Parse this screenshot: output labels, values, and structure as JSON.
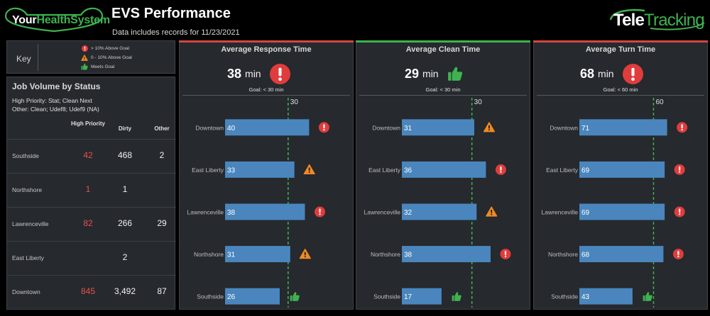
{
  "header": {
    "brand": {
      "part1": "Your",
      "part2": "HealthSystem"
    },
    "title": "EVS Performance",
    "subtitle": "Data includes records for 11/23/2021",
    "vendor": {
      "part1": "Tele",
      "part2": "Tracking"
    }
  },
  "key": {
    "label": "Key",
    "items": [
      {
        "icon": "alert-circle-icon",
        "text": "> 10% Above Goal",
        "color": "#e03c3c"
      },
      {
        "icon": "warning-triangle-icon",
        "text": "0 - 10% Above Goal",
        "color": "#f08a24"
      },
      {
        "icon": "thumbs-up-icon",
        "text": "Meets Goal",
        "color": "#3fb24f"
      }
    ]
  },
  "job_volume": {
    "title": "Job Volume by Status",
    "notes": [
      "High Priority: Stat; Clean Next",
      "Other: Clean; Udef8; Udef9 (NA)"
    ],
    "columns": [
      "High Priority",
      "Dirty",
      "Other"
    ],
    "rows": [
      {
        "location": "Southside",
        "high_priority": "42",
        "dirty": "468",
        "other": "2"
      },
      {
        "location": "Northshore",
        "high_priority": "1",
        "dirty": "1",
        "other": ""
      },
      {
        "location": "Lawrenceville",
        "high_priority": "82",
        "dirty": "266",
        "other": "29"
      },
      {
        "location": "East Liberty",
        "high_priority": "",
        "dirty": "2",
        "other": ""
      },
      {
        "location": "Downtown",
        "high_priority": "845",
        "dirty": "3,492",
        "other": "87"
      }
    ]
  },
  "colors": {
    "bar": "#4a86bd",
    "goal_line": "#3fb24f",
    "alert": "#e03c3c",
    "warning": "#f08a24",
    "good": "#3fb24f",
    "panel_bg": "#26292e"
  },
  "chart_data": [
    {
      "type": "bar",
      "title": "Average Response Time",
      "metric_value": "38",
      "unit": "min",
      "status_icon": "alert-circle-icon",
      "top_color": "#d64541",
      "goal_text": "Goal: < 30 min",
      "goal_value": 30,
      "goal_label": "30",
      "xlim": [
        0,
        50
      ],
      "categories": [
        "Downtown",
        "East Liberty",
        "Lawrenceville",
        "Northshore",
        "Southside"
      ],
      "values": [
        40,
        33,
        38,
        31,
        26
      ],
      "labels": [
        "40",
        "33",
        "38",
        "31",
        "26"
      ],
      "icons": [
        "alert-circle-icon",
        "warning-triangle-icon",
        "alert-circle-icon",
        "warning-triangle-icon",
        "thumbs-up-icon"
      ]
    },
    {
      "type": "bar",
      "title": "Average Clean Time",
      "metric_value": "29",
      "unit": "min",
      "status_icon": "thumbs-up-icon",
      "top_color": "#3fb24f",
      "goal_text": "Goal: < 30 min",
      "goal_value": 30,
      "goal_label": "30",
      "xlim": [
        0,
        45
      ],
      "categories": [
        "Downtown",
        "East Liberty",
        "Lawrenceville",
        "Northshore",
        "Southside"
      ],
      "values": [
        31,
        36,
        32,
        38,
        17
      ],
      "labels": [
        "31",
        "36",
        "32",
        "38",
        "17"
      ],
      "icons": [
        "warning-triangle-icon",
        "alert-circle-icon",
        "warning-triangle-icon",
        "alert-circle-icon",
        "thumbs-up-icon"
      ]
    },
    {
      "type": "bar",
      "title": "Average Turn Time",
      "metric_value": "68",
      "unit": "min",
      "status_icon": "alert-circle-icon",
      "top_color": "#d64541",
      "goal_text": "Goal: < 60 min",
      "goal_value": 60,
      "goal_label": "60",
      "xlim": [
        0,
        85
      ],
      "categories": [
        "Downtown",
        "East Liberty",
        "Lawrenceville",
        "Northshore",
        "Southside"
      ],
      "values": [
        71,
        69,
        69,
        68,
        43
      ],
      "labels": [
        "71",
        "69",
        "69",
        "68",
        "43"
      ],
      "icons": [
        "alert-circle-icon",
        "alert-circle-icon",
        "alert-circle-icon",
        "alert-circle-icon",
        "thumbs-up-icon"
      ]
    }
  ]
}
